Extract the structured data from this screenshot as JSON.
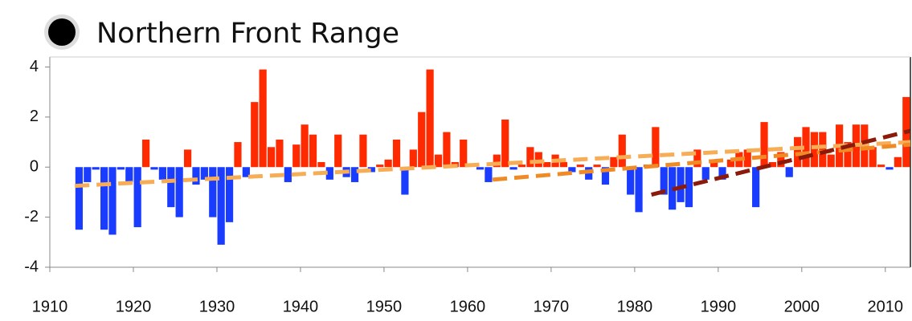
{
  "chart_data": {
    "type": "bar",
    "title": "Northern Front Range",
    "x": [
      1913,
      1914,
      1915,
      1916,
      1917,
      1918,
      1919,
      1920,
      1921,
      1922,
      1923,
      1924,
      1925,
      1926,
      1927,
      1928,
      1929,
      1930,
      1931,
      1932,
      1933,
      1934,
      1935,
      1936,
      1937,
      1938,
      1939,
      1940,
      1941,
      1942,
      1943,
      1944,
      1945,
      1946,
      1947,
      1948,
      1949,
      1950,
      1951,
      1952,
      1953,
      1954,
      1955,
      1956,
      1957,
      1958,
      1959,
      1960,
      1961,
      1962,
      1963,
      1964,
      1965,
      1966,
      1967,
      1968,
      1969,
      1970,
      1971,
      1972,
      1973,
      1974,
      1975,
      1976,
      1977,
      1978,
      1979,
      1980,
      1981,
      1982,
      1983,
      1984,
      1985,
      1986,
      1987,
      1988,
      1989,
      1990,
      1991,
      1992,
      1993,
      1994,
      1995,
      1996,
      1997,
      1998,
      1999,
      2000,
      2001,
      2002,
      2003,
      2004,
      2005,
      2006,
      2007,
      2008,
      2009,
      2010,
      2011,
      2012
    ],
    "values": [
      -2.5,
      -0.6,
      -0.1,
      -2.5,
      -2.7,
      -0.1,
      -0.6,
      -2.4,
      1.1,
      -0.1,
      -0.5,
      -1.6,
      -2.0,
      0.7,
      -0.7,
      -0.5,
      -2.0,
      -3.1,
      -2.2,
      1.0,
      -0.4,
      2.6,
      3.9,
      0.8,
      1.1,
      -0.6,
      0.9,
      1.7,
      1.3,
      0.2,
      -0.5,
      1.3,
      -0.4,
      -0.6,
      1.3,
      -0.2,
      0.1,
      0.3,
      1.1,
      -1.1,
      0.7,
      2.2,
      3.9,
      0.5,
      1.4,
      0.2,
      1.1,
      0.0,
      -0.1,
      -0.6,
      0.5,
      1.9,
      -0.1,
      0.1,
      0.8,
      0.6,
      0.2,
      0.5,
      0.2,
      -0.2,
      0.1,
      -0.5,
      0.1,
      -0.7,
      0.4,
      1.3,
      -1.1,
      -1.8,
      0.1,
      1.6,
      -1.1,
      -1.7,
      -1.4,
      -1.6,
      0.7,
      -0.5,
      0.2,
      -0.5,
      0.3,
      0.6,
      0.7,
      -1.6,
      1.8,
      0.2,
      0.6,
      -0.4,
      1.2,
      1.6,
      1.4,
      1.4,
      0.5,
      1.7,
      1.0,
      1.7,
      1.7,
      0.8,
      0.1,
      -0.1,
      0.4,
      2.8
    ],
    "positive_color": "#ff2a00",
    "negative_color": "#1a3cff",
    "trends": [
      {
        "color": "#f7ad55",
        "x": [
          1913,
          2013
        ],
        "values": [
          -0.75,
          1.0
        ]
      },
      {
        "color": "#f08a24",
        "x": [
          1963,
          2013
        ],
        "values": [
          -0.5,
          0.9
        ]
      },
      {
        "color": "#8b1a0a",
        "x": [
          1982,
          2013
        ],
        "values": [
          -1.1,
          1.45
        ]
      }
    ],
    "xlim": [
      1910,
      2013
    ],
    "ylim": [
      -4,
      4.4
    ],
    "xticks": [
      1910,
      1920,
      1930,
      1940,
      1950,
      1960,
      1970,
      1980,
      1990,
      2000,
      2010
    ],
    "yticks": [
      -4,
      -2,
      0,
      2,
      4
    ]
  }
}
